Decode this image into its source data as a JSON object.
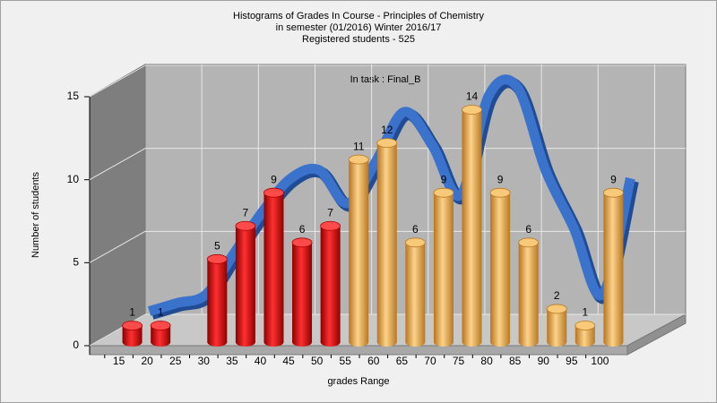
{
  "chart_data": {
    "type": "bar3d",
    "title": [
      "Histograms of Grades  In Course - Principles of Chemistry",
      "in semester  (01/2016) Winter 2016/17",
      "Registered students - 525"
    ],
    "annotation": "In task : Final_B",
    "x_label": "grades Range",
    "y_label": "Number of students",
    "categories": [
      "15",
      "20",
      "25",
      "30",
      "35",
      "40",
      "45",
      "50",
      "55",
      "60",
      "65",
      "70",
      "75",
      "80",
      "85",
      "90",
      "95",
      "100"
    ],
    "values": [
      1,
      1,
      null,
      5,
      7,
      9,
      6,
      7,
      11,
      12,
      6,
      9,
      14,
      9,
      6,
      2,
      1,
      9
    ],
    "colors": [
      "red",
      "red",
      "red",
      "red",
      "red",
      "red",
      "red",
      "red",
      "orange",
      "orange",
      "orange",
      "orange",
      "orange",
      "orange",
      "orange",
      "orange",
      "orange",
      "orange"
    ],
    "curve": {
      "color": "#3a72cc",
      "values": [
        1,
        1.5,
        2,
        4.5,
        7,
        9,
        9.5,
        7.5,
        10,
        13,
        11,
        8,
        14,
        14.5,
        9.5,
        6,
        2,
        9
      ]
    },
    "ylim": [
      0,
      15
    ],
    "yticks": [
      0,
      5,
      10,
      15
    ],
    "grid": true
  }
}
